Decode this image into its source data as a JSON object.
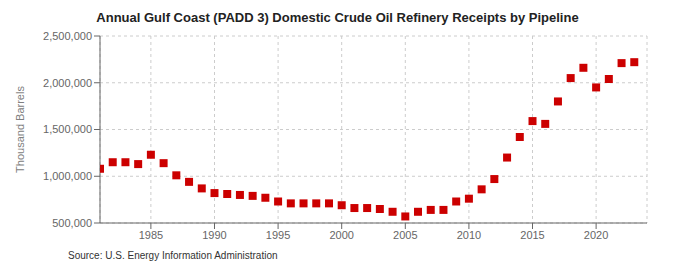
{
  "chart_data": {
    "type": "scatter",
    "title": "Annual Gulf Coast (PADD 3) Domestic Crude Oil Refinery Receipts by Pipeline",
    "ylabel": "Thousand Barrels",
    "annotation": "Source: U.S. Energy Information Administration",
    "x": [
      1981,
      1982,
      1983,
      1984,
      1985,
      1986,
      1987,
      1988,
      1989,
      1990,
      1991,
      1992,
      1993,
      1994,
      1995,
      1996,
      1997,
      1998,
      1999,
      2000,
      2001,
      2002,
      2003,
      2004,
      2005,
      2006,
      2007,
      2008,
      2009,
      2010,
      2011,
      2012,
      2013,
      2014,
      2015,
      2016,
      2017,
      2018,
      2019,
      2020,
      2021,
      2022,
      2023
    ],
    "values": [
      1080000,
      1150000,
      1150000,
      1130000,
      1230000,
      1140000,
      1010000,
      940000,
      870000,
      820000,
      810000,
      800000,
      790000,
      770000,
      730000,
      710000,
      710000,
      710000,
      710000,
      690000,
      660000,
      660000,
      650000,
      620000,
      570000,
      620000,
      640000,
      640000,
      730000,
      760000,
      860000,
      970000,
      1200000,
      1420000,
      1590000,
      1560000,
      1800000,
      2050000,
      2160000,
      1950000,
      2040000,
      2210000,
      2220000
    ],
    "color": "#cc0000",
    "marker": "square",
    "grid": true,
    "xlim": [
      1981,
      2024
    ],
    "xticks": [
      1985,
      1990,
      1995,
      2000,
      2005,
      2010,
      2015,
      2020
    ],
    "ylim": [
      500000,
      2500000
    ],
    "yticks": [
      {
        "value": 500000,
        "label": "500,000"
      },
      {
        "value": 1000000,
        "label": "1,000,000"
      },
      {
        "value": 1500000,
        "label": "1,500,000"
      },
      {
        "value": 2000000,
        "label": "2,000,000"
      },
      {
        "value": 2500000,
        "label": "2,500,000"
      }
    ]
  }
}
